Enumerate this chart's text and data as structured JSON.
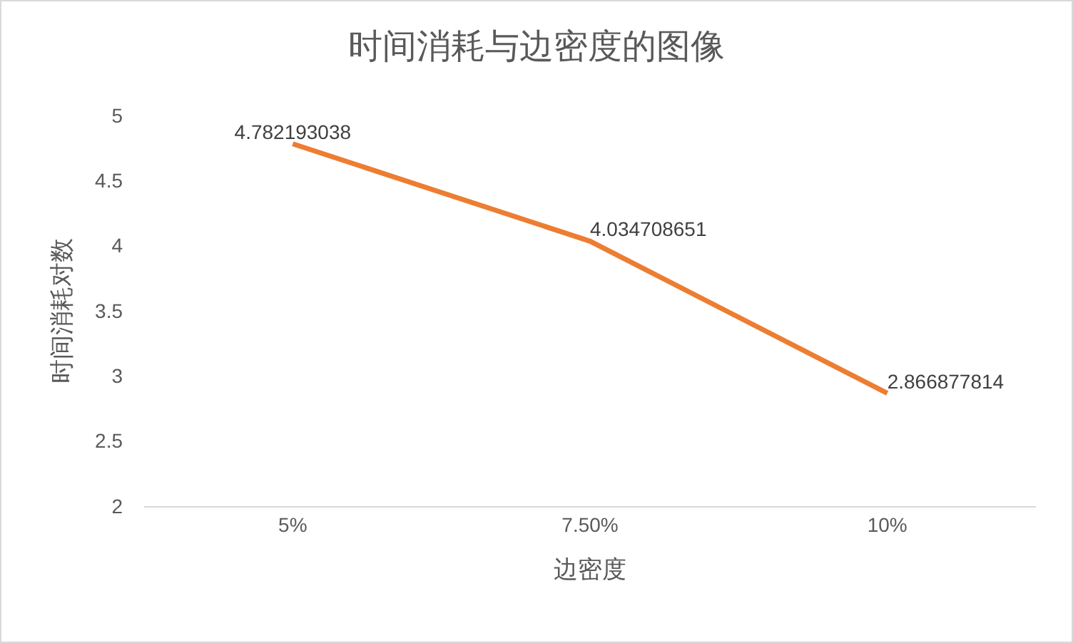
{
  "chart_data": {
    "type": "line",
    "title": "时间消耗与边密度的图像",
    "xlabel": "边密度",
    "ylabel": "时间消耗对数",
    "categories": [
      "5%",
      "7.50%",
      "10%"
    ],
    "series": [
      {
        "color": "#ed7d31",
        "values": [
          4.782193038,
          4.034708651,
          2.866877814
        ]
      }
    ],
    "ylim": [
      2,
      5
    ],
    "yticks": [
      2,
      2.5,
      3,
      3.5,
      4,
      4.5,
      5
    ],
    "grid": false,
    "marker": "none",
    "line_style": "solid",
    "data_labels": true
  }
}
